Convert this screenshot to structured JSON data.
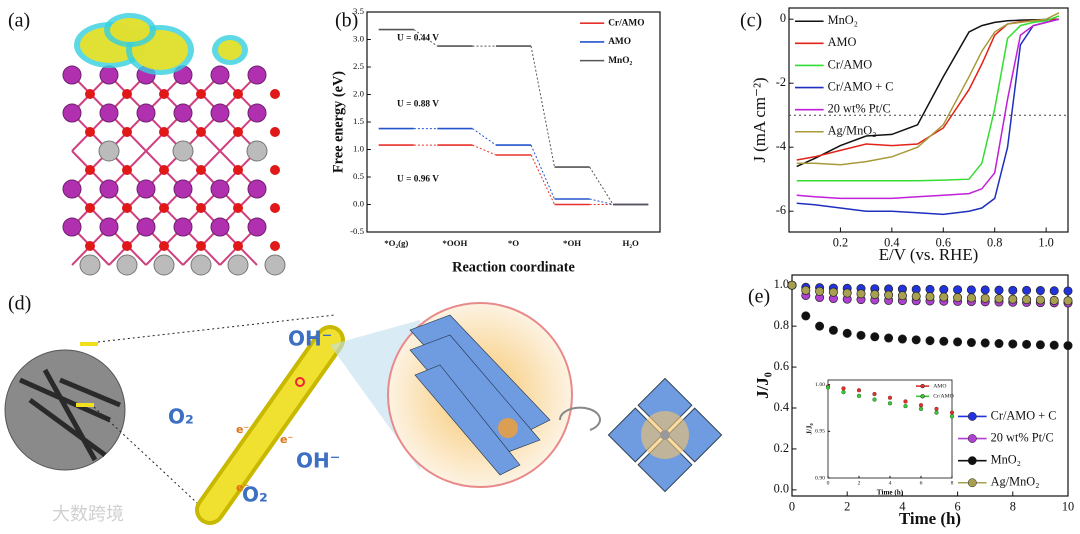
{
  "panel_labels": [
    "(a)",
    "(b)",
    "(c)",
    "(d)",
    "(e)"
  ],
  "illustration": {
    "texts": [
      "OH⁻",
      "O₂",
      "OH⁻",
      "O₂",
      "e⁻",
      "e⁻",
      "e⁻"
    ],
    "watermark": "大数跨境"
  },
  "chart_data": [
    {
      "type": "energy",
      "xlabel": "Reaction coordinate",
      "ylabel": "Free energy (eV)",
      "categories": [
        "*O₂(g)",
        "*OOH",
        "*O",
        "*OH",
        "H₂O"
      ],
      "series": [
        {
          "name": "Cr/AMO",
          "color": "#e8302a",
          "values": [
            1.08,
            1.08,
            0.9,
            0.0,
            0.0
          ]
        },
        {
          "name": "AMO",
          "color": "#2255cc",
          "values": [
            1.38,
            1.38,
            1.08,
            0.1,
            0.0
          ]
        },
        {
          "name": "MnO₂",
          "color": "#555555",
          "values": [
            3.18,
            2.88,
            2.88,
            0.68,
            0.0
          ]
        }
      ],
      "annotations": [
        "U = 0.44 V",
        "U = 0.88 V",
        "U = 0.96 V"
      ],
      "ylim": [
        -0.5,
        3.5
      ],
      "yticks": [
        -0.5,
        {
          "value": 0,
          "label": "0.0"
        },
        0.5,
        {
          "value": 1,
          "label": "1.0"
        },
        1.5,
        {
          "value": 2,
          "label": "2.0"
        },
        2.5,
        {
          "value": 3,
          "label": "3.0"
        },
        3.5
      ],
      "legend": "upper right"
    },
    {
      "type": "line",
      "xlabel": "E/V (vs. RHE)",
      "ylabel": "J (mA cm⁻²)",
      "x": [
        0.03,
        0.1,
        0.2,
        0.3,
        0.4,
        0.5,
        0.6,
        0.7,
        0.75,
        0.8,
        0.85,
        0.9,
        0.95,
        1.0,
        1.05
      ],
      "series": [
        {
          "name": "MnO₂",
          "color": "#111111",
          "values": [
            -4.6,
            -4.35,
            -3.95,
            -3.65,
            -3.6,
            -3.3,
            -1.8,
            -0.4,
            -0.2,
            -0.1,
            -0.05,
            -0.03,
            -0.02,
            -0.01,
            0
          ]
        },
        {
          "name": "AMO",
          "color": "#e2231a",
          "values": [
            -4.4,
            -4.3,
            -4.1,
            -3.9,
            -3.95,
            -3.9,
            -3.4,
            -2.2,
            -1.4,
            -0.5,
            -0.15,
            -0.08,
            -0.05,
            -0.02,
            0
          ]
        },
        {
          "name": "Cr/AMO",
          "color": "#33dd33",
          "values": [
            -5.05,
            -5.05,
            -5.05,
            -5.05,
            -5.05,
            -5.05,
            -5.03,
            -5.0,
            -4.5,
            -2.8,
            -0.6,
            -0.2,
            -0.1,
            -0.05,
            0.1
          ]
        },
        {
          "name": "Cr/AMO + C",
          "color": "#1f2fbf",
          "values": [
            -5.75,
            -5.8,
            -5.9,
            -6.0,
            -6.0,
            -6.05,
            -6.1,
            -6.0,
            -5.9,
            -5.6,
            -4.0,
            -0.8,
            -0.2,
            -0.1,
            0
          ]
        },
        {
          "name": "20 wt% Pt/C",
          "color": "#c020d8",
          "values": [
            -5.5,
            -5.55,
            -5.6,
            -5.6,
            -5.6,
            -5.55,
            -5.5,
            -5.45,
            -5.3,
            -4.8,
            -2.5,
            -0.5,
            -0.2,
            -0.1,
            0
          ]
        },
        {
          "name": "Ag/MnO₂",
          "color": "#a89a3a",
          "values": [
            -4.5,
            -4.5,
            -4.55,
            -4.45,
            -4.3,
            -4.0,
            -3.3,
            -1.8,
            -1.0,
            -0.4,
            -0.15,
            -0.1,
            -0.05,
            0,
            0.2
          ]
        }
      ],
      "ref_line": -3,
      "xlim": [
        0,
        1.085
      ],
      "xticks": [
        0.2,
        0.4,
        0.6,
        0.8,
        {
          "value": 1,
          "label": "1.0"
        }
      ],
      "ylim": [
        -6.65,
        0.35
      ],
      "yticks": [
        0,
        -2,
        -4,
        -6
      ],
      "legend": "upper left"
    },
    {
      "type": "scatter",
      "xlabel": "Time (h)",
      "ylabel": "J/J₀",
      "x": [
        0,
        0.5,
        1,
        1.5,
        2,
        2.5,
        3,
        3.5,
        4,
        4.5,
        5,
        5.5,
        6,
        6.5,
        7,
        7.5,
        8,
        8.5,
        9,
        9.5,
        10
      ],
      "series": [
        {
          "name": "Cr/AMO + C",
          "color": "#2233dd",
          "values": [
            1.0,
            0.99,
            0.988,
            0.986,
            0.985,
            0.984,
            0.983,
            0.982,
            0.981,
            0.98,
            0.98,
            0.979,
            0.978,
            0.977,
            0.977,
            0.976,
            0.975,
            0.975,
            0.974,
            0.973,
            0.972
          ]
        },
        {
          "name": "20 wt% Pt/C",
          "color": "#b040d0",
          "values": [
            1.0,
            0.95,
            0.94,
            0.935,
            0.932,
            0.93,
            0.928,
            0.926,
            0.925,
            0.924,
            0.923,
            0.922,
            0.921,
            0.92,
            0.919,
            0.918,
            0.917,
            0.916,
            0.915,
            0.914,
            0.913
          ]
        },
        {
          "name": "MnO₂",
          "color": "#111111",
          "values": [
            1.0,
            0.85,
            0.8,
            0.78,
            0.765,
            0.755,
            0.748,
            0.742,
            0.737,
            0.733,
            0.729,
            0.726,
            0.723,
            0.72,
            0.718,
            0.715,
            0.713,
            0.711,
            0.709,
            0.707,
            0.705
          ]
        },
        {
          "name": "Ag/MnO₂",
          "color": "#a8a050",
          "values": [
            1.0,
            0.975,
            0.97,
            0.966,
            0.962,
            0.958,
            0.955,
            0.952,
            0.949,
            0.946,
            0.944,
            0.942,
            0.94,
            0.938,
            0.936,
            0.934,
            0.932,
            0.93,
            0.928,
            0.926,
            0.924
          ]
        }
      ],
      "xlim": [
        0,
        10
      ],
      "xticks": [
        0,
        2,
        4,
        6,
        8,
        10
      ],
      "ylim": [
        -0.03,
        1.05
      ],
      "yticks": [
        {
          "value": 0,
          "label": "0.0"
        },
        0.2,
        0.4,
        0.6,
        0.8,
        {
          "value": 1,
          "label": "1.0"
        }
      ],
      "legend": "lower right"
    },
    {
      "type": "scatter",
      "xlabel": "Time (h)",
      "ylabel": "J/J₀",
      "x": [
        0,
        1,
        2,
        3,
        4,
        5,
        6,
        7,
        8
      ],
      "series": [
        {
          "name": "AMO",
          "color": "#e8302a",
          "values": [
            0.998,
            0.996,
            0.994,
            0.99,
            0.986,
            0.982,
            0.978,
            0.974,
            0.97
          ]
        },
        {
          "name": "Cr/AMO",
          "color": "#33cc33",
          "values": [
            0.997,
            0.992,
            0.988,
            0.984,
            0.98,
            0.977,
            0.974,
            0.97,
            0.966
          ]
        }
      ],
      "xlim": [
        0,
        8
      ],
      "xticks": [
        0,
        2,
        4,
        6,
        8
      ],
      "ylim": [
        0.9,
        1.005
      ],
      "yticks": [
        {
          "value": 0.9,
          "label": "0.90"
        },
        0.95,
        {
          "value": 1,
          "label": "1.00"
        }
      ],
      "legend": "upper right"
    }
  ]
}
